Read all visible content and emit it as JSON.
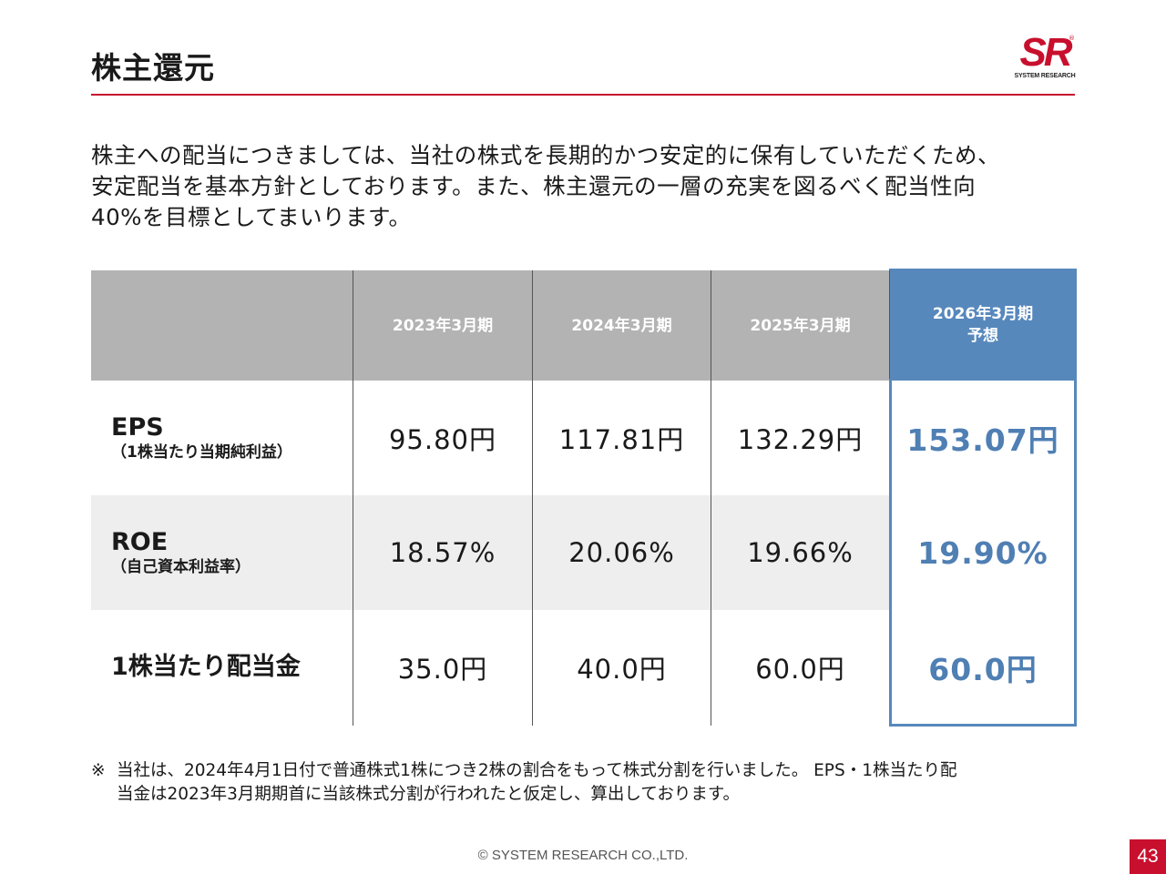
{
  "header": {
    "title": "株主還元",
    "logo": {
      "mark": "SR",
      "registered": "®",
      "text": "SYSTEM RESEARCH"
    }
  },
  "intro": {
    "lines": [
      "株主への配当につきましては、当社の株式を長期的かつ安定的に保有していただくため、",
      "安定配当を基本方針としております。また、株主還元の一層の充実を図るべく配当性向",
      "40%を目標としてまいります。"
    ]
  },
  "table": {
    "columns": [
      {
        "label": "2023年3月期",
        "sub": ""
      },
      {
        "label": "2024年3月期",
        "sub": ""
      },
      {
        "label": "2025年3月期",
        "sub": ""
      },
      {
        "label": "2026年3月期",
        "sub": "予想"
      }
    ],
    "rows": [
      {
        "label": "EPS",
        "sub": "（1株当たり当期純利益）",
        "values": [
          "95.80円",
          "117.81円",
          "132.29円",
          "153.07円"
        ]
      },
      {
        "label": "ROE",
        "sub": "（自己資本利益率）",
        "values": [
          "18.57%",
          "20.06%",
          "19.66%",
          "19.90%"
        ]
      },
      {
        "label": "1株当たり配当金",
        "sub": "",
        "values": [
          "35.0円",
          "40.0円",
          "60.0円",
          "60.0円"
        ]
      }
    ],
    "colors": {
      "header_gray": "#b3b3b3",
      "forecast_blue": "#5788bc",
      "forecast_text": "#4f7fb3",
      "band": "#eeeeee"
    }
  },
  "note": {
    "mark": "※",
    "lines": [
      "当社は、2024年4月1日付で普通株式1株につき2株の割合をもって株式分割を行いました。 EPS・1株当たり配",
      "当金は2023年3月期期首に当該株式分割が行われたと仮定し、算出しております。"
    ]
  },
  "footer": {
    "copyright": "© SYSTEM RESEARCH CO.,LTD.",
    "page_number": "43"
  },
  "accent_color": "#c8102e"
}
